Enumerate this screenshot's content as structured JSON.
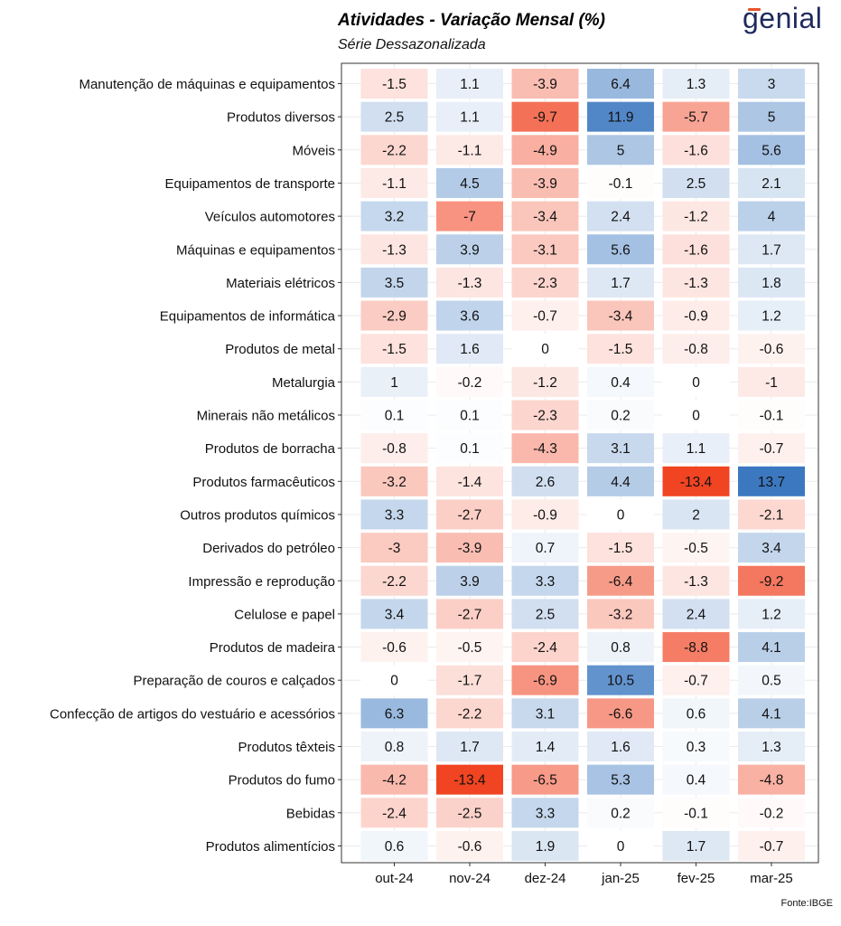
{
  "header": {
    "title": "Atividades - Variação Mensal (%)",
    "subtitle": "Série Dessazonalizada",
    "logo_text": "genial",
    "source": "Fonte:IBGE"
  },
  "colors": {
    "negative": "#f0401e",
    "positive": "#3c78c0",
    "neutral": "#ffffff",
    "logo": "#1f2a5c",
    "logo_accent": "#e8542a"
  },
  "chart_data": {
    "type": "heatmap",
    "title": "Atividades - Variação Mensal (%)",
    "subtitle": "Série Dessazonalizada",
    "columns": [
      "out-24",
      "nov-24",
      "dez-24",
      "jan-25",
      "fev-25",
      "mar-25"
    ],
    "rows": [
      {
        "label": "Manutenção de máquinas e equipamentos",
        "values": [
          -1.5,
          1.1,
          -3.9,
          6.4,
          1.3,
          3
        ]
      },
      {
        "label": "Produtos diversos",
        "values": [
          2.5,
          1.1,
          -9.7,
          11.9,
          -5.7,
          5
        ]
      },
      {
        "label": "Móveis",
        "values": [
          -2.2,
          -1.1,
          -4.9,
          5,
          -1.6,
          5.6
        ]
      },
      {
        "label": "Equipamentos de transporte",
        "values": [
          -1.1,
          4.5,
          -3.9,
          -0.1,
          2.5,
          2.1
        ]
      },
      {
        "label": "Veículos automotores",
        "values": [
          3.2,
          -7,
          -3.4,
          2.4,
          -1.2,
          4
        ]
      },
      {
        "label": "Máquinas e equipamentos",
        "values": [
          -1.3,
          3.9,
          -3.1,
          5.6,
          -1.6,
          1.7
        ]
      },
      {
        "label": "Materiais elétricos",
        "values": [
          3.5,
          -1.3,
          -2.3,
          1.7,
          -1.3,
          1.8
        ]
      },
      {
        "label": "Equipamentos de informática",
        "values": [
          -2.9,
          3.6,
          -0.7,
          -3.4,
          -0.9,
          1.2
        ]
      },
      {
        "label": "Produtos de metal",
        "values": [
          -1.5,
          1.6,
          0,
          -1.5,
          -0.8,
          -0.6
        ]
      },
      {
        "label": "Metalurgia",
        "values": [
          1,
          -0.2,
          -1.2,
          0.4,
          0,
          -1
        ]
      },
      {
        "label": "Minerais não metálicos",
        "values": [
          0.1,
          0.1,
          -2.3,
          0.2,
          0,
          -0.1
        ]
      },
      {
        "label": "Produtos de borracha",
        "values": [
          -0.8,
          0.1,
          -4.3,
          3.1,
          1.1,
          -0.7
        ]
      },
      {
        "label": "Produtos farmacêuticos",
        "values": [
          -3.2,
          -1.4,
          2.6,
          4.4,
          -13.4,
          13.7
        ]
      },
      {
        "label": "Outros produtos químicos",
        "values": [
          3.3,
          -2.7,
          -0.9,
          0,
          2,
          -2.1
        ]
      },
      {
        "label": "Derivados do petróleo",
        "values": [
          -3,
          -3.9,
          0.7,
          -1.5,
          -0.5,
          3.4
        ]
      },
      {
        "label": "Impressão e reprodução",
        "values": [
          -2.2,
          3.9,
          3.3,
          -6.4,
          -1.3,
          -9.2
        ]
      },
      {
        "label": "Celulose e papel",
        "values": [
          3.4,
          -2.7,
          2.5,
          -3.2,
          2.4,
          1.2
        ]
      },
      {
        "label": "Produtos de madeira",
        "values": [
          -0.6,
          -0.5,
          -2.4,
          0.8,
          -8.8,
          4.1
        ]
      },
      {
        "label": "Preparação de couros e calçados",
        "values": [
          0,
          -1.7,
          -6.9,
          10.5,
          -0.7,
          0.5
        ]
      },
      {
        "label": "Confecção de artigos do vestuário e acessórios",
        "values": [
          6.3,
          -2.2,
          3.1,
          -6.6,
          0.6,
          4.1
        ]
      },
      {
        "label": "Produtos têxteis",
        "values": [
          0.8,
          1.7,
          1.4,
          1.6,
          0.3,
          1.3
        ]
      },
      {
        "label": "Produtos do fumo",
        "values": [
          -4.2,
          -13.4,
          -6.5,
          5.3,
          0.4,
          -4.8
        ]
      },
      {
        "label": "Bebidas",
        "values": [
          -2.4,
          -2.5,
          3.3,
          0.2,
          -0.1,
          -0.2
        ]
      },
      {
        "label": "Produtos alimentícios",
        "values": [
          0.6,
          -0.6,
          1.9,
          0,
          1.7,
          -0.7
        ]
      }
    ],
    "color_scale": {
      "min": -13.7,
      "max": 13.7
    },
    "grid": true,
    "legend": "none"
  }
}
